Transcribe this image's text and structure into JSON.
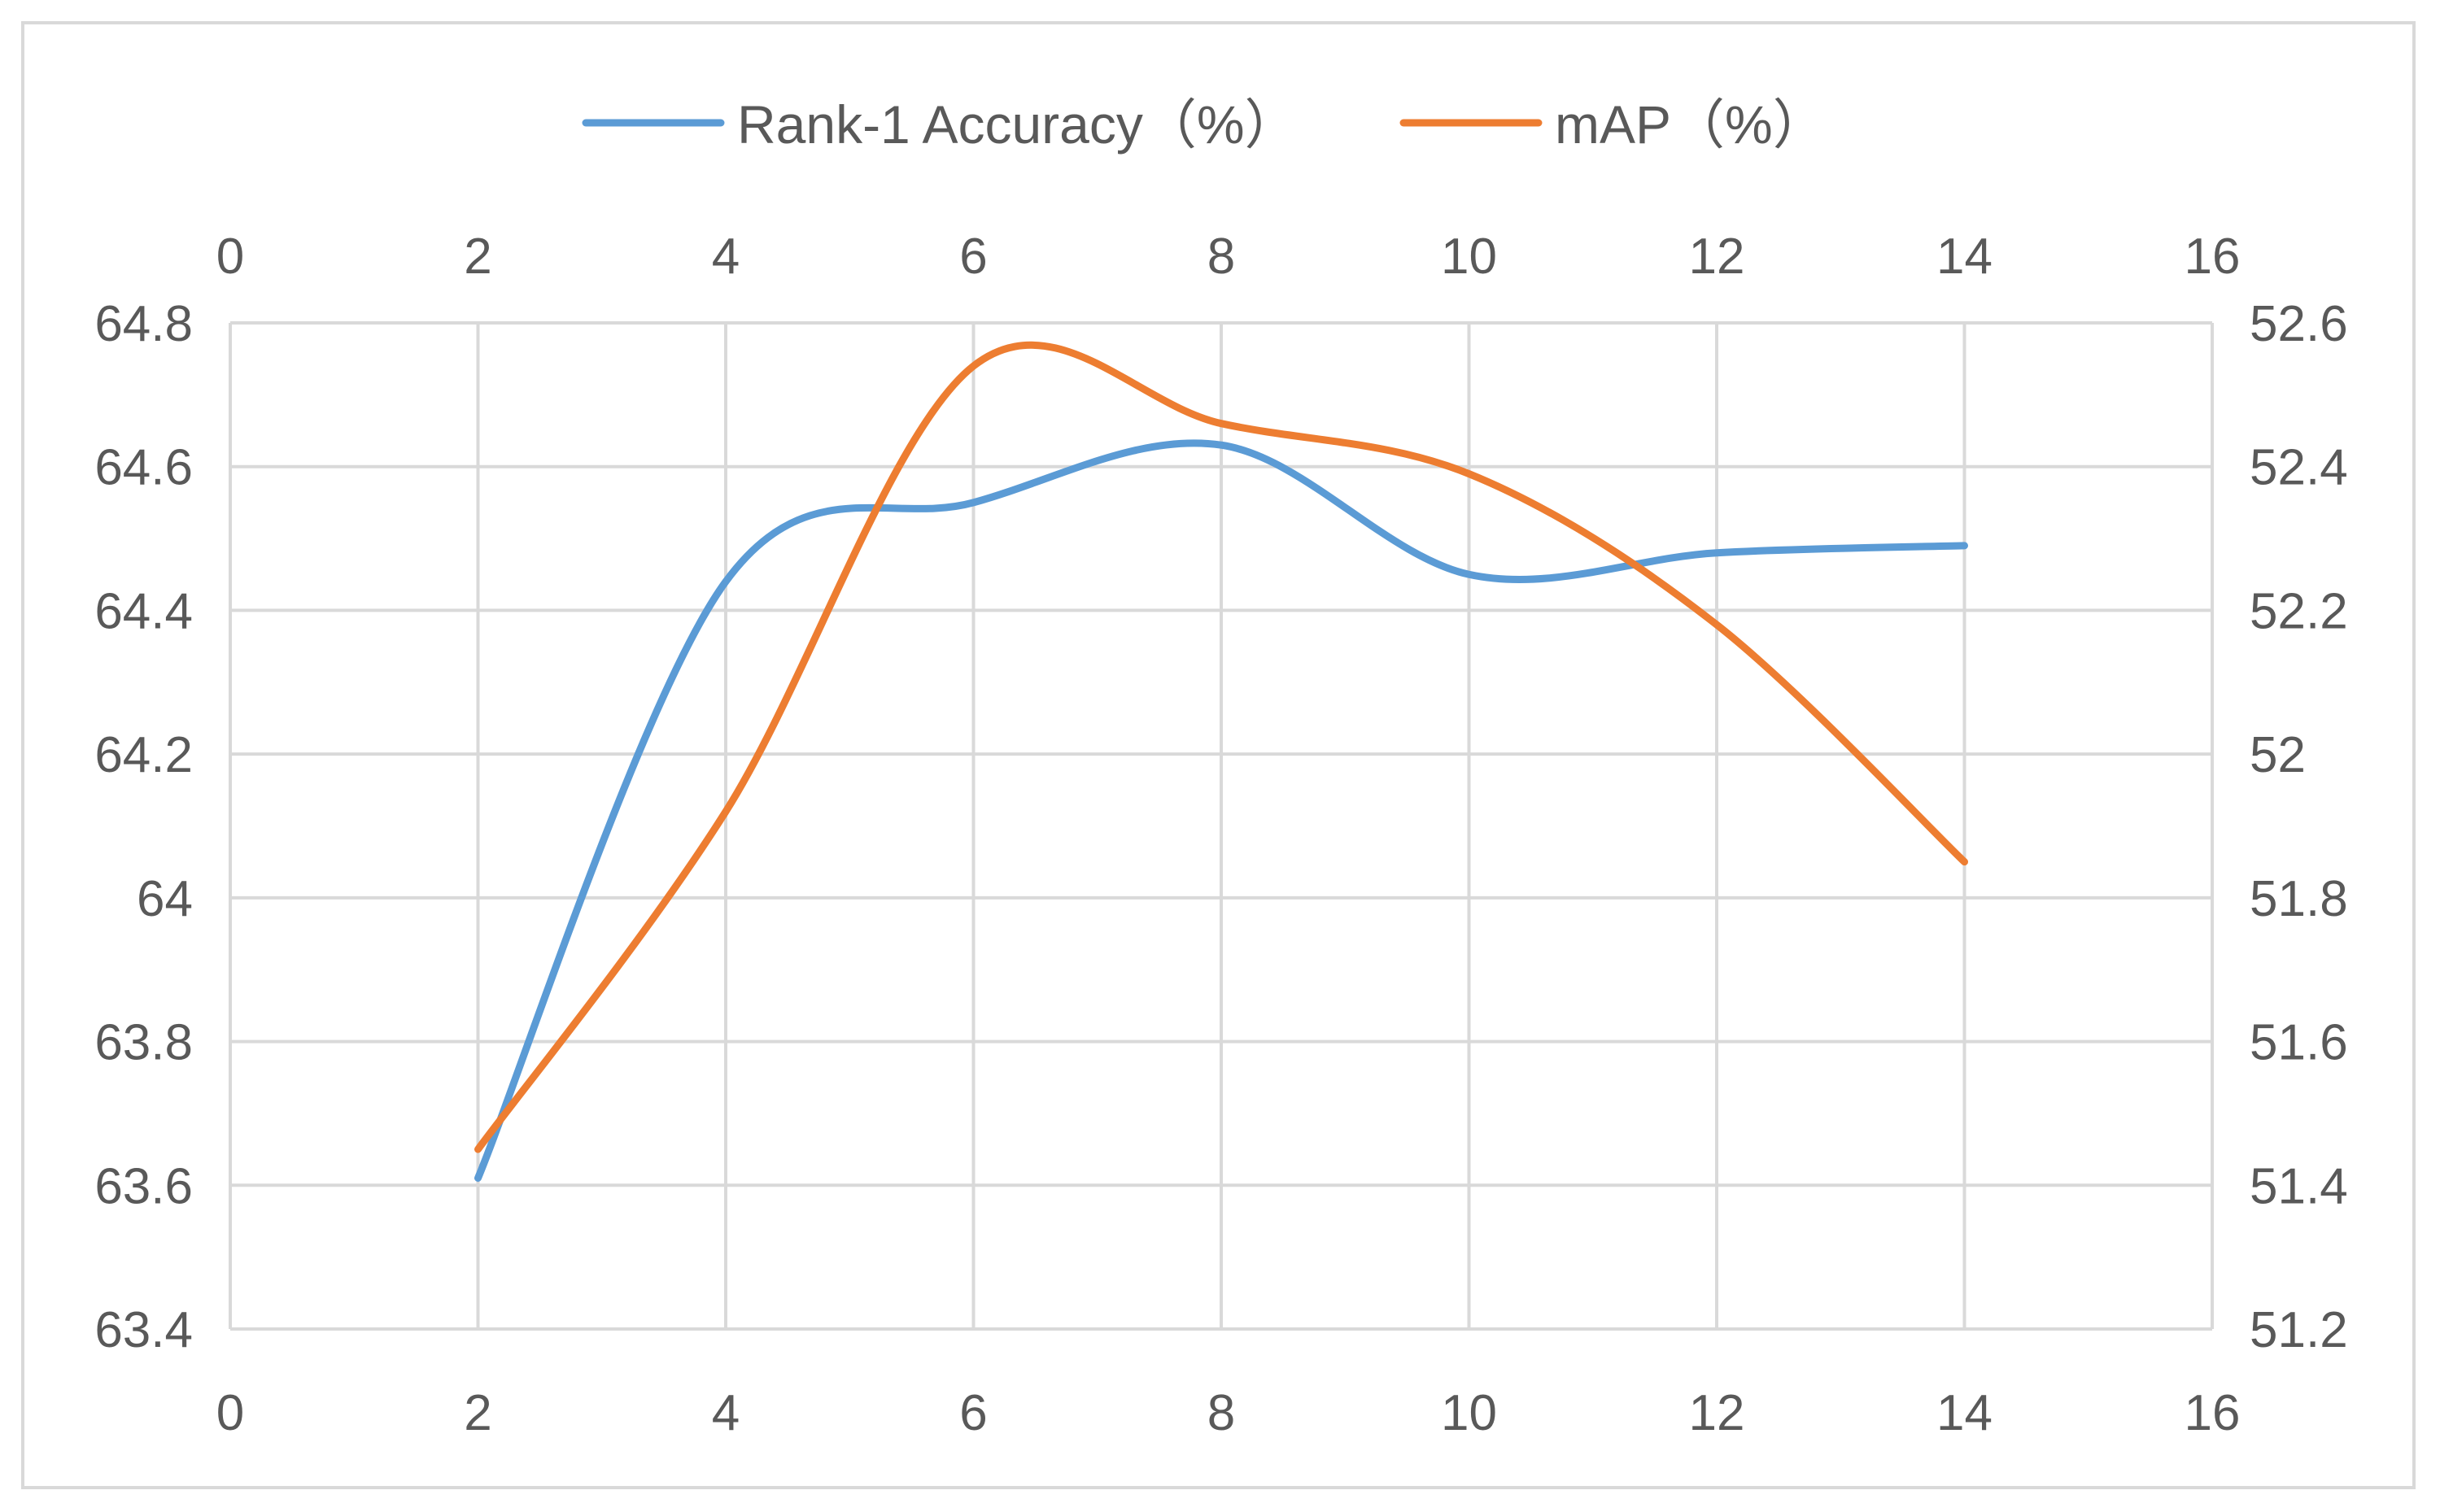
{
  "chart_data": {
    "type": "line",
    "title": "",
    "x_axis": {
      "ticks": [
        "0",
        "2",
        "4",
        "6",
        "8",
        "10",
        "12",
        "14",
        "16"
      ],
      "range": [
        0,
        16
      ]
    },
    "y_left": {
      "ticks": [
        "63.4",
        "63.6",
        "63.8",
        "64",
        "64.2",
        "64.4",
        "64.6",
        "64.8"
      ],
      "range": [
        63.4,
        64.8
      ]
    },
    "y_right": {
      "ticks": [
        "51.2",
        "51.4",
        "51.6",
        "51.8",
        "52",
        "52.2",
        "52.4",
        "52.6"
      ],
      "range": [
        51.2,
        52.6
      ]
    },
    "grid": true,
    "legend_position": "top",
    "series": [
      {
        "name": "Rank-1 Accuracy（%）",
        "axis": "left",
        "color": "#5b9bd5",
        "x": [
          2,
          4,
          6,
          8,
          10,
          12,
          14
        ],
        "values": [
          63.61,
          64.44,
          64.55,
          64.63,
          64.45,
          64.48,
          64.49
        ]
      },
      {
        "name": "mAP（%）",
        "axis": "right",
        "color": "#ed7d31",
        "x": [
          2,
          4,
          6,
          8,
          10,
          12,
          14
        ],
        "values": [
          51.45,
          51.92,
          52.54,
          52.46,
          52.39,
          52.18,
          51.85
        ]
      }
    ]
  }
}
